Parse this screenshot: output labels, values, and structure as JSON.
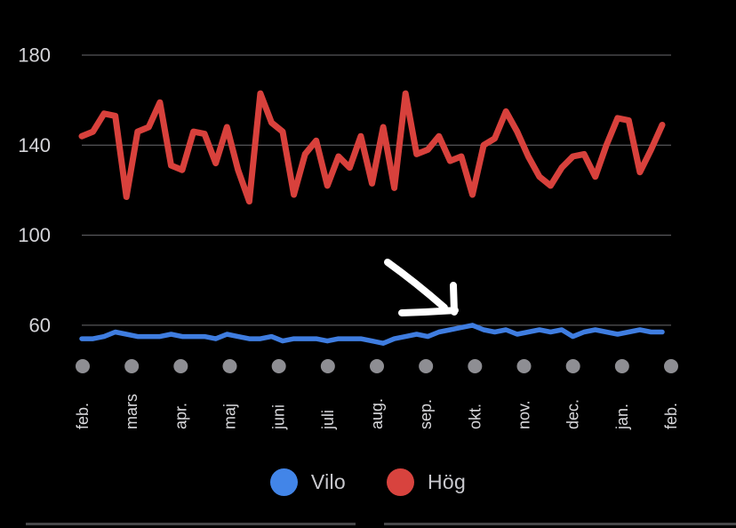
{
  "colors": {
    "background": "#000000",
    "grid": "#6a6a6e",
    "axis_label": "#d4d4d8",
    "month_label": "#d9d9dc",
    "month_dot": "#8e8e93",
    "arrow": "#ffffff",
    "vilo_blue": "#3f7de0",
    "hog_red": "#d8413c",
    "divider": "#474749"
  },
  "legend": {
    "items": [
      {
        "label": "Vilo",
        "color": "#4285e8"
      },
      {
        "label": "Hög",
        "color": "#d8433e"
      }
    ]
  },
  "chart_data": {
    "type": "line",
    "title": "",
    "xlabel": "",
    "ylabel": "",
    "x_unit": "week",
    "categories_axis": [
      "feb.",
      "mars",
      "apr.",
      "maj",
      "juni",
      "juli",
      "aug.",
      "sep.",
      "okt.",
      "nov.",
      "dec.",
      "jan.",
      "feb."
    ],
    "y_ticks": [
      180,
      140,
      100,
      60
    ],
    "ylim": [
      45,
      185
    ],
    "grid": "horizontal",
    "legend_position": "bottom",
    "series": [
      {
        "name": "Hög",
        "color": "#d8413c",
        "values": [
          144,
          146,
          154,
          153,
          117,
          146,
          148,
          159,
          131,
          129,
          146,
          145,
          132,
          148,
          129,
          115,
          163,
          150,
          146,
          118,
          136,
          142,
          122,
          135,
          130,
          144,
          123,
          148,
          121,
          163,
          136,
          138,
          144,
          133,
          135,
          118,
          140,
          143,
          155,
          146,
          135,
          126,
          122,
          130,
          135,
          136,
          126,
          140,
          152,
          151,
          128,
          138,
          149
        ]
      },
      {
        "name": "Vilo",
        "color": "#3f7de0",
        "values": [
          54,
          54,
          55,
          57,
          56,
          55,
          55,
          55,
          56,
          55,
          55,
          55,
          54,
          56,
          55,
          54,
          54,
          55,
          53,
          54,
          54,
          54,
          53,
          54,
          54,
          54,
          53,
          52,
          54,
          55,
          56,
          55,
          57,
          58,
          59,
          60,
          58,
          57,
          58,
          56,
          57,
          58,
          57,
          58,
          55,
          57,
          58,
          57,
          56,
          57,
          58,
          57,
          57
        ]
      }
    ],
    "annotation": {
      "type": "hand-drawn-arrow",
      "color": "#ffffff",
      "points_to": "Vilo line peak (~60) near okt."
    }
  }
}
